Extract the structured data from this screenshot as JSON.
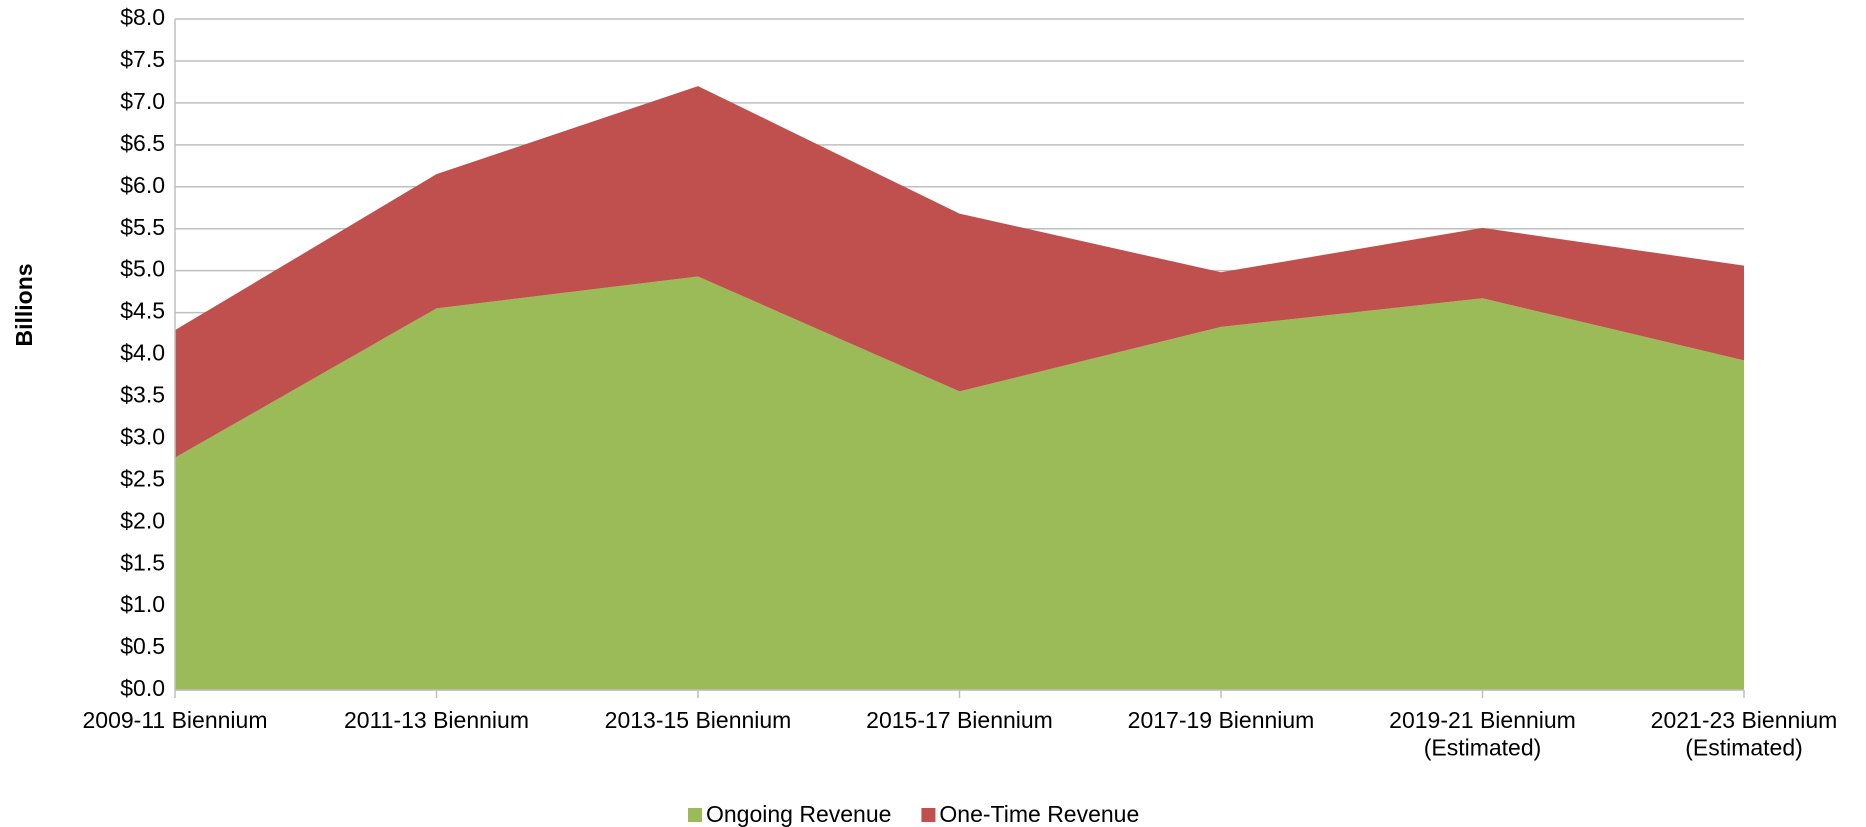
{
  "chart_data": {
    "type": "stacked_area",
    "y_label": "Billions",
    "categories": [
      "2009-11 Biennium",
      "2011-13 Biennium",
      "2013-15 Biennium",
      "2015-17 Biennium",
      "2017-19 Biennium",
      "2019-21 Biennium\n(Estimated)",
      "2021-23 Biennium\n(Estimated)"
    ],
    "series": [
      {
        "name": "Ongoing Revenue",
        "color": "#9bbb59",
        "values": [
          2.77,
          4.55,
          4.93,
          3.56,
          4.33,
          4.67,
          3.93
        ]
      },
      {
        "name": "One-Time Revenue",
        "color": "#c0504d",
        "values": [
          1.52,
          1.6,
          2.27,
          2.12,
          0.65,
          0.84,
          1.13
        ]
      }
    ],
    "ylim": [
      0,
      8
    ],
    "yticks": [
      {
        "value": 0,
        "label": "$0.0"
      },
      {
        "value": 0.5,
        "label": "$0.5"
      },
      {
        "value": 1,
        "label": "$1.0"
      },
      {
        "value": 1.5,
        "label": "$1.5"
      },
      {
        "value": 2,
        "label": "$2.0"
      },
      {
        "value": 2.5,
        "label": "$2.5"
      },
      {
        "value": 3,
        "label": "$3.0"
      },
      {
        "value": 3.5,
        "label": "$3.5"
      },
      {
        "value": 4,
        "label": "$4.0"
      },
      {
        "value": 4.5,
        "label": "$4.5"
      },
      {
        "value": 5,
        "label": "$5.0"
      },
      {
        "value": 5.5,
        "label": "$5.5"
      },
      {
        "value": 6,
        "label": "$6.0"
      },
      {
        "value": 6.5,
        "label": "$6.5"
      },
      {
        "value": 7,
        "label": "$7.0"
      },
      {
        "value": 7.5,
        "label": "$7.5"
      },
      {
        "value": 8,
        "label": "$8.0"
      }
    ],
    "grid": true,
    "legend": "bottom"
  }
}
